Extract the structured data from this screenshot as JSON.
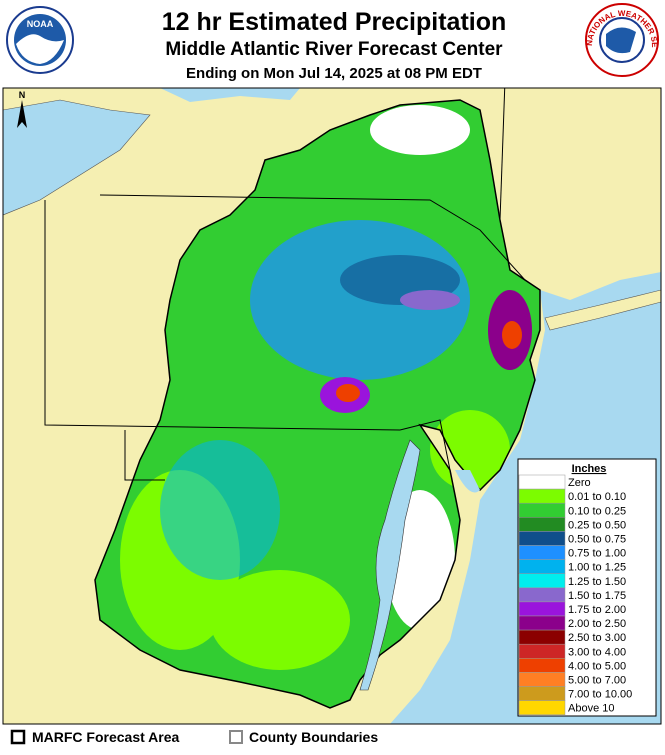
{
  "header": {
    "title": "12 hr Estimated Precipitation",
    "subtitle": "Middle Atlantic River Forecast Center",
    "valid_time": "Ending on Mon Jul 14, 2025 at 08 PM EDT",
    "left_logo": "NOAA",
    "right_logo": "NATIONAL WEATHER SERVICE"
  },
  "map": {
    "north_label": "N"
  },
  "legend": {
    "title": "Inches",
    "items": [
      {
        "label": "Zero",
        "color": "#ffffff"
      },
      {
        "label": "0.01 to 0.10",
        "color": "#7cfc00"
      },
      {
        "label": "0.10 to 0.25",
        "color": "#32cd32"
      },
      {
        "label": "0.25 to 0.50",
        "color": "#228b22"
      },
      {
        "label": "0.50 to 0.75",
        "color": "#104e8b"
      },
      {
        "label": "0.75 to 1.00",
        "color": "#1e90ff"
      },
      {
        "label": "1.00 to 1.25",
        "color": "#00b2ee"
      },
      {
        "label": "1.25 to 1.50",
        "color": "#00eeee"
      },
      {
        "label": "1.50 to 1.75",
        "color": "#8968cd"
      },
      {
        "label": "1.75 to 2.00",
        "color": "#9a14dc"
      },
      {
        "label": "2.00 to 2.50",
        "color": "#8b008b"
      },
      {
        "label": "2.50 to 3.00",
        "color": "#8b0000"
      },
      {
        "label": "3.00 to 4.00",
        "color": "#cd2626"
      },
      {
        "label": "4.00 to 5.00",
        "color": "#ee4000"
      },
      {
        "label": "5.00 to 7.00",
        "color": "#ff7f24"
      },
      {
        "label": "7.00 to 10.00",
        "color": "#cd9b1d"
      },
      {
        "label": "Above 10",
        "color": "#ffd700"
      }
    ]
  },
  "footer": {
    "items": [
      "MARFC Forecast Area",
      "County Boundaries"
    ]
  }
}
